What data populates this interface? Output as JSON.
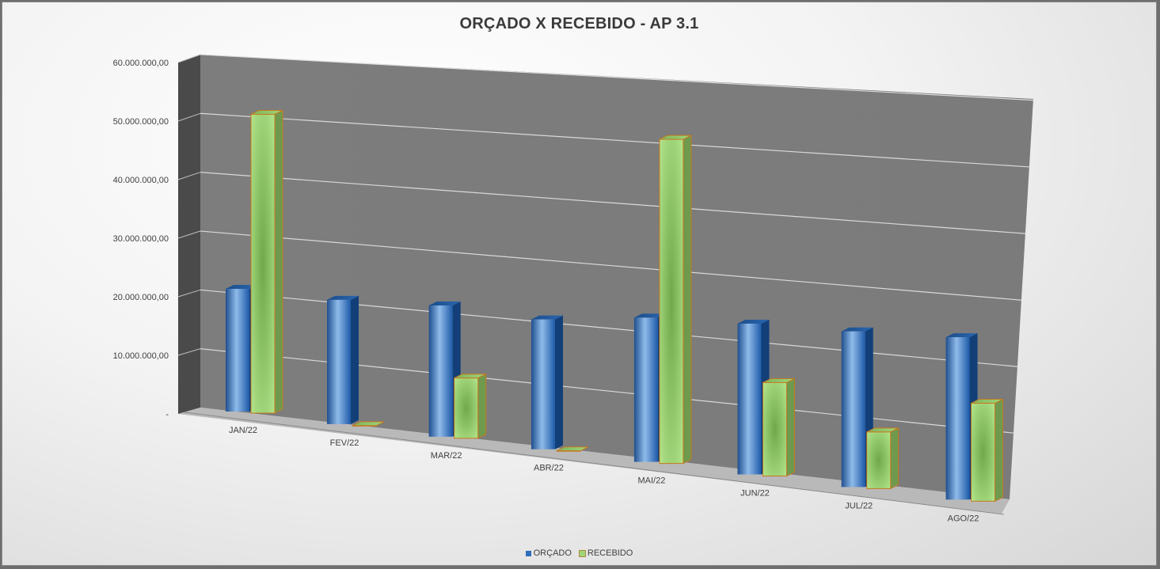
{
  "chart_data": {
    "type": "bar",
    "title": "ORÇADO X RECEBIDO - AP 3.1",
    "categories": [
      "JAN/22",
      "FEV/22",
      "MAR/22",
      "ABR/22",
      "MAI/22",
      "JUN/22",
      "JUL/22",
      "AGO/22"
    ],
    "series": [
      {
        "name": "ORÇADO",
        "color": "#2e6db8",
        "values": [
          20900000,
          21000000,
          22000000,
          21600000,
          23800000,
          24700000,
          25300000,
          26200000
        ]
      },
      {
        "name": "RECEBIDO",
        "color": "#9fd67a",
        "values": [
          50900000,
          0,
          10100000,
          0,
          53500000,
          15300000,
          9200000,
          15800000
        ]
      }
    ],
    "ylim": [
      0,
      60000000
    ],
    "yticks": [
      {
        "value": 0,
        "label": "-"
      },
      {
        "value": 10000000,
        "label": "10.000.000,00"
      },
      {
        "value": 20000000,
        "label": "20.000.000,00"
      },
      {
        "value": 30000000,
        "label": "30.000.000,00"
      },
      {
        "value": 40000000,
        "label": "40.000.000,00"
      },
      {
        "value": 50000000,
        "label": "50.000.000,00"
      },
      {
        "value": 60000000,
        "label": "60.000.000,00"
      }
    ],
    "xlabel": "",
    "ylabel": "",
    "grid": true,
    "legend_position": "bottom"
  }
}
